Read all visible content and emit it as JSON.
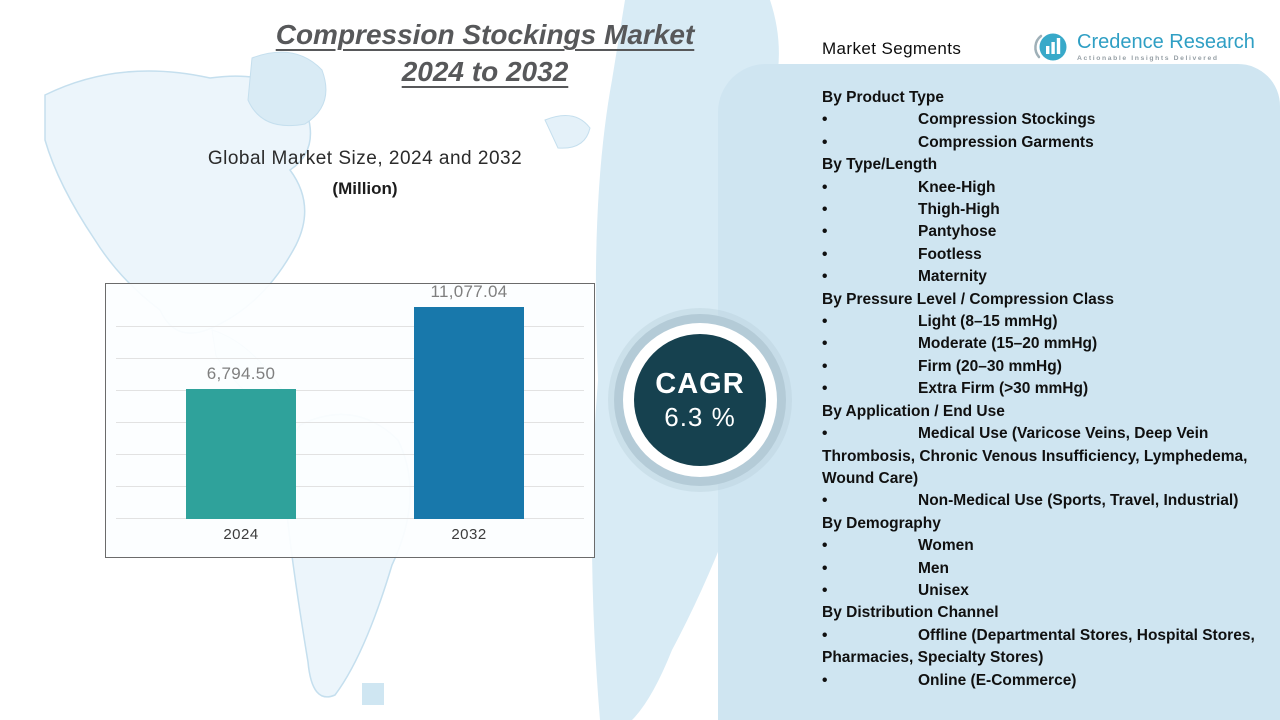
{
  "page": {
    "title_line1": "Compression Stockings Market",
    "title_line2": "2024 to 2032"
  },
  "brand": {
    "name": "Credence Research",
    "tagline": "Actionable Insights Delivered"
  },
  "cagr": {
    "label": "CAGR",
    "value": "6.3 %"
  },
  "chart_data": {
    "type": "bar",
    "title": "Global Market Size, 2024 and 2032",
    "unit": "(Million)",
    "categories": [
      "2024",
      "2032"
    ],
    "values": [
      6794.5,
      11077.04
    ],
    "value_labels": [
      "6,794.50",
      "11,077.04"
    ],
    "bar_colors": [
      "#2fa29b",
      "#1878ab"
    ],
    "ylim": [
      0,
      12000
    ],
    "grid": true,
    "legend": false,
    "xlabel": "",
    "ylabel": ""
  },
  "colors": {
    "cagr_circle": "#16414f",
    "panel_bg": "#cfe5f1"
  },
  "segments": {
    "header": "Market Segments",
    "rows": [
      {
        "type": "group",
        "text": "By Product Type"
      },
      {
        "type": "item",
        "text": "Compression Stockings"
      },
      {
        "type": "item",
        "text": "Compression Garments"
      },
      {
        "type": "group",
        "text": "By Type/Length"
      },
      {
        "type": "item",
        "text": "Knee-High"
      },
      {
        "type": "item",
        "text": "Thigh-High"
      },
      {
        "type": "item",
        "text": "Pantyhose"
      },
      {
        "type": "item",
        "text": "Footless"
      },
      {
        "type": "item",
        "text": "Maternity"
      },
      {
        "type": "group",
        "text": "By Pressure Level / Compression Class"
      },
      {
        "type": "item",
        "text": "Light (8–15 mmHg)"
      },
      {
        "type": "item",
        "text": "Moderate (15–20 mmHg)"
      },
      {
        "type": "item",
        "text": "Firm (20–30 mmHg)"
      },
      {
        "type": "item",
        "text": "Extra Firm (>30 mmHg)"
      },
      {
        "type": "group",
        "text": "By Application / End Use"
      },
      {
        "type": "item",
        "text": "Medical Use (Varicose Veins, Deep Vein Thrombosis, Chronic Venous Insufficiency, Lymphedema, Wound Care)"
      },
      {
        "type": "item",
        "text": "Non-Medical Use (Sports, Travel, Industrial)"
      },
      {
        "type": "group",
        "text": "By Demography"
      },
      {
        "type": "item",
        "text": "Women"
      },
      {
        "type": "item",
        "text": "Men"
      },
      {
        "type": "item",
        "text": "Unisex"
      },
      {
        "type": "group",
        "text": "By Distribution Channel"
      },
      {
        "type": "item",
        "text": "Offline (Departmental Stores, Hospital Stores, Pharmacies, Specialty Stores)"
      },
      {
        "type": "item",
        "text": "Online (E-Commerce)"
      }
    ]
  }
}
